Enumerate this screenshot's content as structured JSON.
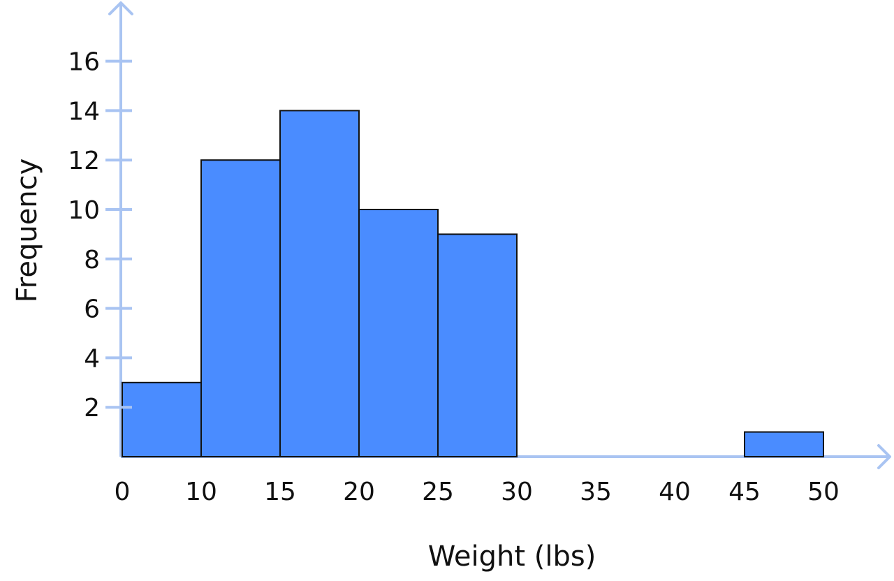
{
  "chart_data": {
    "type": "bar",
    "subtype": "histogram",
    "xlabel": "Weight (lbs)",
    "ylabel": "Frequency",
    "x_tick_labels": [
      "0",
      "10",
      "15",
      "20",
      "25",
      "30",
      "35",
      "40",
      "45",
      "50"
    ],
    "y_ticks": [
      2,
      4,
      6,
      8,
      10,
      12,
      14,
      16
    ],
    "bins": [
      {
        "label": "0-10",
        "value": 3
      },
      {
        "label": "10-15",
        "value": 12
      },
      {
        "label": "15-20",
        "value": 14
      },
      {
        "label": "20-25",
        "value": 10
      },
      {
        "label": "25-30",
        "value": 9
      },
      {
        "label": "30-35",
        "value": 0
      },
      {
        "label": "35-40",
        "value": 0
      },
      {
        "label": "40-45",
        "value": 0
      },
      {
        "label": "45-50",
        "value": 1
      }
    ],
    "ylim": [
      0,
      16
    ],
    "grid": false,
    "colors": {
      "bar": "#4a8cff",
      "bar_edge": "#111111",
      "axis": "#a9c4f2"
    }
  }
}
